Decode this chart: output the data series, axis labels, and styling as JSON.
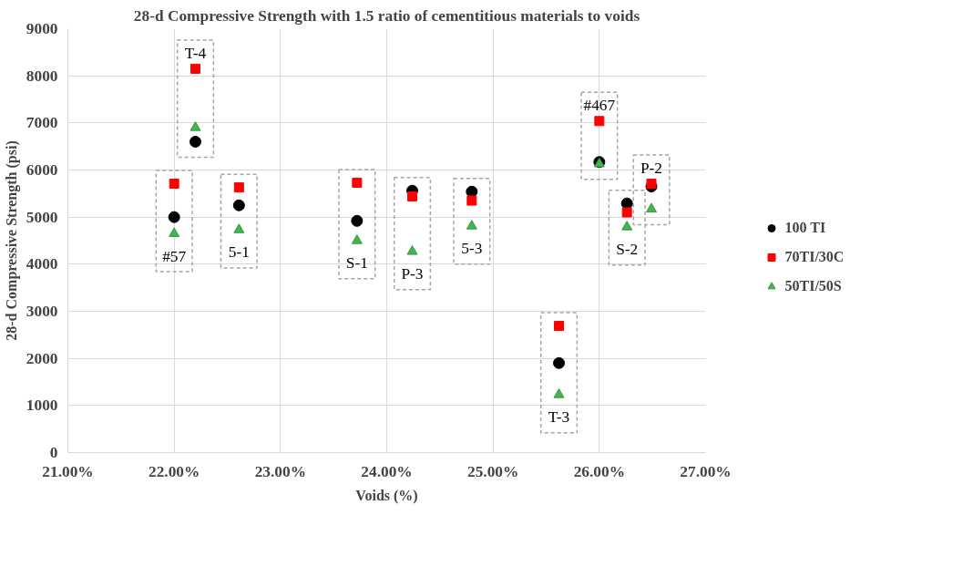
{
  "chart_data": {
    "type": "scatter",
    "title": "28-d Compressive Strength with 1.5 ratio of cementitious materials to voids",
    "xlabel": "Voids (%)",
    "ylabel": "28-d Compressive Strength (psi)",
    "x": [
      22.0,
      22.2,
      22.61,
      23.72,
      24.24,
      24.8,
      25.62,
      26.0,
      26.26,
      26.49
    ],
    "series": [
      {
        "name": "100 TI",
        "color": "#000000",
        "marker": "circle",
        "values": [
          5000,
          6600,
          5250,
          4920,
          5560,
          5540,
          1900,
          6170,
          5290,
          5650
        ]
      },
      {
        "name": "70TI/30C",
        "color": "#ff0000",
        "marker": "square",
        "values": [
          5710,
          8150,
          5630,
          5730,
          5440,
          5350,
          2690,
          7040,
          5100,
          5710
        ]
      },
      {
        "name": "50TI/50S",
        "color": "#4caf50",
        "marker": "triangle",
        "values": [
          4650,
          6900,
          4730,
          4500,
          4270,
          4810,
          1230,
          6130,
          4790,
          5170
        ]
      }
    ],
    "annotations": [
      {
        "text": "#57",
        "x": 22.0,
        "y": 4650
      },
      {
        "text": "T-4",
        "x": 22.2,
        "y": 8150
      },
      {
        "text": "5-1",
        "x": 22.61,
        "y": 4730
      },
      {
        "text": "S-1",
        "x": 23.72,
        "y": 4500
      },
      {
        "text": "P-3",
        "x": 24.24,
        "y": 4270
      },
      {
        "text": "5-3",
        "x": 24.8,
        "y": 4810
      },
      {
        "text": "T-3",
        "x": 25.62,
        "y": 1230
      },
      {
        "text": "#467",
        "x": 26.0,
        "y": 7040
      },
      {
        "text": "S-2",
        "x": 26.26,
        "y": 4790
      },
      {
        "text": "P-2",
        "x": 26.49,
        "y": 5710
      }
    ],
    "xlim": [
      21,
      27
    ],
    "ylim": [
      0,
      9000
    ],
    "xticks": [
      {
        "value": 21,
        "label": "21.00%"
      },
      {
        "value": 22,
        "label": "22.00%"
      },
      {
        "value": 23,
        "label": "23.00%"
      },
      {
        "value": 24,
        "label": "24.00%"
      },
      {
        "value": 25,
        "label": "25.00%"
      },
      {
        "value": 26,
        "label": "26.00%"
      },
      {
        "value": 27,
        "label": "27.00%"
      }
    ],
    "yticks": [
      0,
      1000,
      2000,
      3000,
      4000,
      5000,
      6000,
      7000,
      8000,
      9000
    ],
    "grid": true,
    "legend": "right"
  }
}
